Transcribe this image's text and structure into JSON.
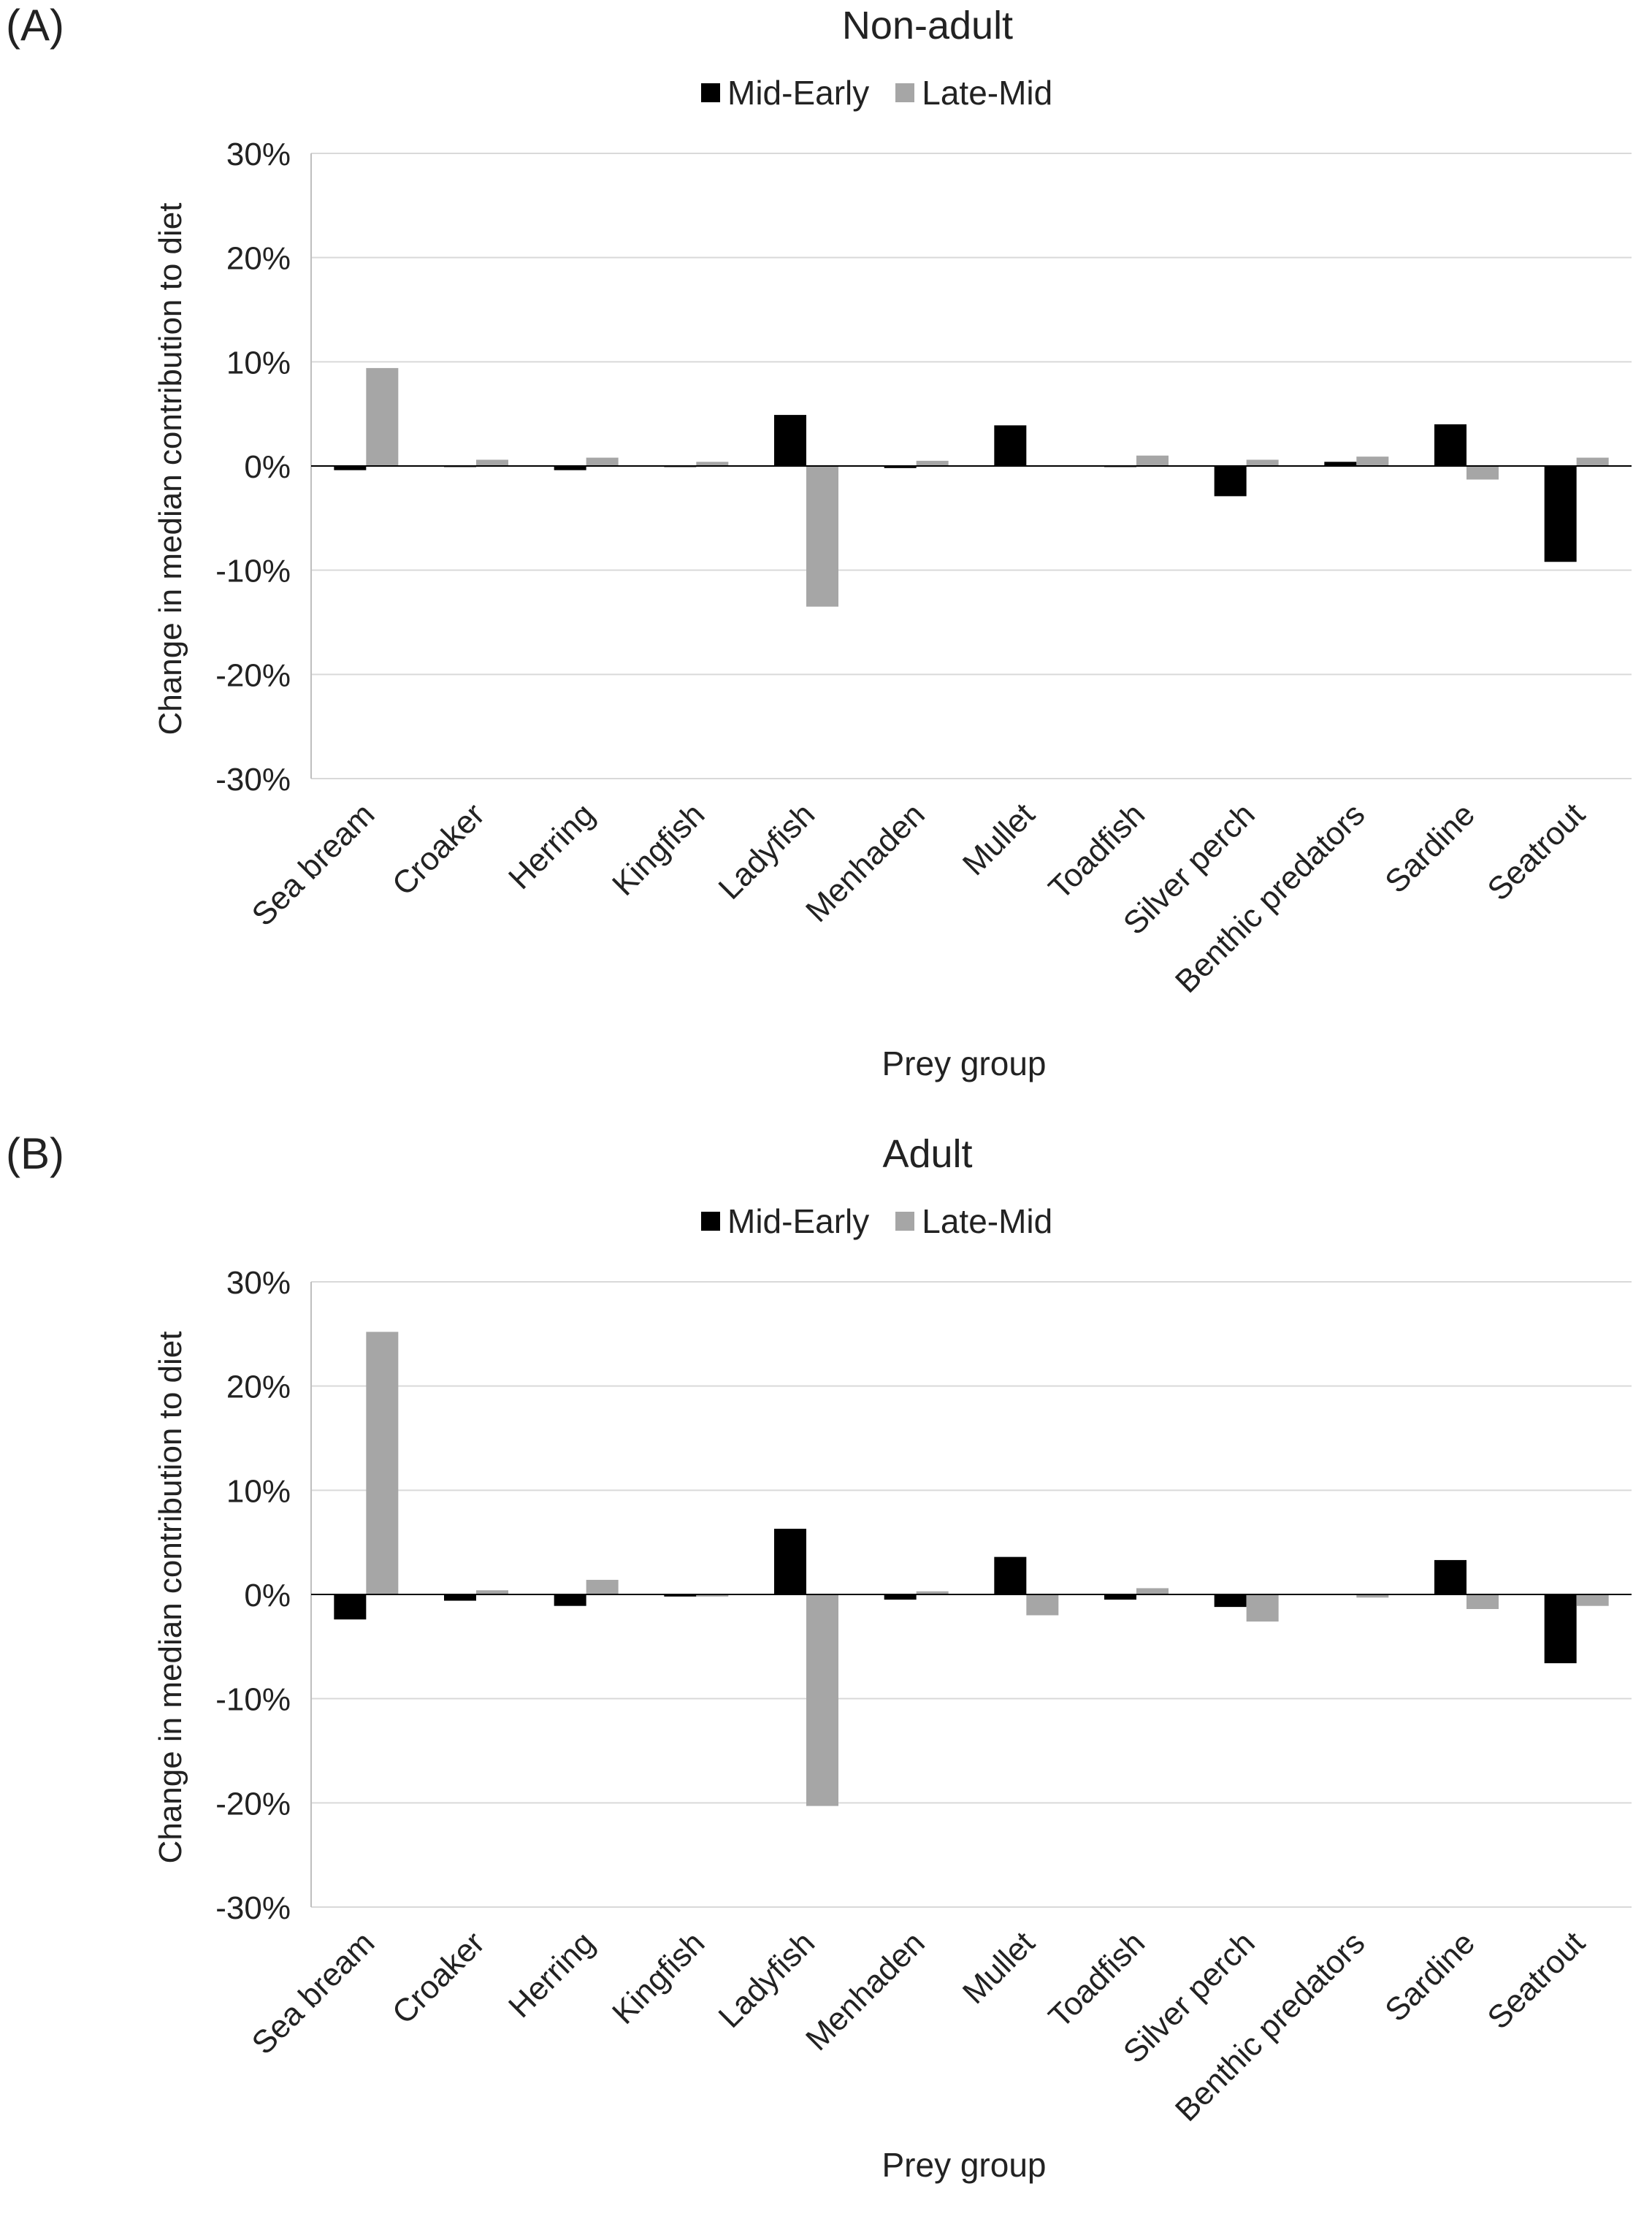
{
  "chart_data": [
    {
      "type": "bar",
      "panel_label": "(A)",
      "title": "Non-adult",
      "xlabel": "Prey group",
      "ylabel": "Change in median contribution to diet",
      "ylim": [
        -30,
        30
      ],
      "yticks": [
        30,
        20,
        10,
        0,
        -10,
        -20,
        -30
      ],
      "ytick_labels": [
        "30%",
        "20%",
        "10%",
        "0%",
        "-10%",
        "-20%",
        "-30%"
      ],
      "categories": [
        "Sea bream",
        "Croaker",
        "Herring",
        "Kingfish",
        "Ladyfish",
        "Menhaden",
        "Mullet",
        "Toadfish",
        "Silver perch",
        "Benthic predators",
        "Sardine",
        "Seatrout"
      ],
      "series": [
        {
          "name": "Mid-Early",
          "color": "#000000",
          "values": [
            -0.4,
            -0.1,
            -0.4,
            -0.1,
            4.9,
            -0.2,
            3.9,
            -0.1,
            -2.9,
            0.4,
            4.0,
            -9.2
          ]
        },
        {
          "name": "Late-Mid",
          "color": "#a6a6a6",
          "values": [
            9.4,
            0.6,
            0.8,
            0.4,
            -13.5,
            0.5,
            0.0,
            1.0,
            0.6,
            0.9,
            -1.3,
            0.8
          ]
        }
      ],
      "grid": true,
      "legend": "top-center"
    },
    {
      "type": "bar",
      "panel_label": "(B)",
      "title": "Adult",
      "xlabel": "Prey group",
      "ylabel": "Change in median contribution to diet",
      "ylim": [
        -30,
        30
      ],
      "yticks": [
        30,
        20,
        10,
        0,
        -10,
        -20,
        -30
      ],
      "ytick_labels": [
        "30%",
        "20%",
        "10%",
        "0%",
        "-10%",
        "-20%",
        "-30%"
      ],
      "categories": [
        "Sea bream",
        "Croaker",
        "Herring",
        "Kingfish",
        "Ladyfish",
        "Menhaden",
        "Mullet",
        "Toadfish",
        "Silver perch",
        "Benthic predators",
        "Sardine",
        "Seatrout"
      ],
      "series": [
        {
          "name": "Mid-Early",
          "color": "#000000",
          "values": [
            -2.4,
            -0.6,
            -1.1,
            -0.2,
            6.3,
            -0.5,
            3.6,
            -0.5,
            -1.2,
            0.0,
            3.3,
            -6.6
          ]
        },
        {
          "name": "Late-Mid",
          "color": "#a6a6a6",
          "values": [
            25.2,
            0.4,
            1.4,
            -0.2,
            -20.3,
            0.3,
            -2.0,
            0.6,
            -2.6,
            -0.3,
            -1.4,
            -1.1
          ]
        }
      ],
      "grid": true,
      "legend": "top-center"
    }
  ]
}
